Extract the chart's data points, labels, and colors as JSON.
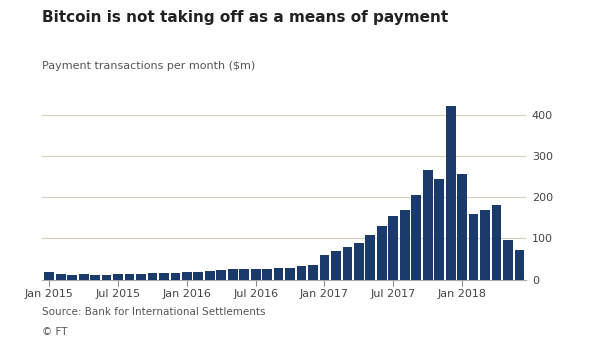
{
  "title": "Bitcoin is not taking off as a means of payment",
  "ylabel": "Payment transactions per month ($m)",
  "source_line1": "Source: Bank for International Settlements",
  "source_line2": "© FT",
  "bar_color": "#1a3a6b",
  "background_color": "#ffffff",
  "plot_bg_color": "#ffffff",
  "grid_color": "#d8cfc0",
  "ylim": [
    0,
    430
  ],
  "yticks": [
    0,
    100,
    200,
    300,
    400
  ],
  "values": [
    18,
    13,
    11,
    13,
    12,
    12,
    13,
    13,
    14,
    15,
    17,
    17,
    19,
    19,
    21,
    23,
    25,
    25,
    26,
    26,
    27,
    29,
    33,
    36,
    60,
    70,
    80,
    90,
    108,
    130,
    155,
    168,
    205,
    265,
    245,
    420,
    255,
    160,
    170,
    180,
    95,
    72
  ],
  "n_bars": 42,
  "xtick_indices": [
    0,
    6,
    12,
    18,
    24,
    30,
    36
  ],
  "xtick_labels": [
    "Jan 2015",
    "Jul 2015",
    "Jan 2016",
    "Jul 2016",
    "Jan 2017",
    "Jul 2017",
    "Jan 2018"
  ]
}
